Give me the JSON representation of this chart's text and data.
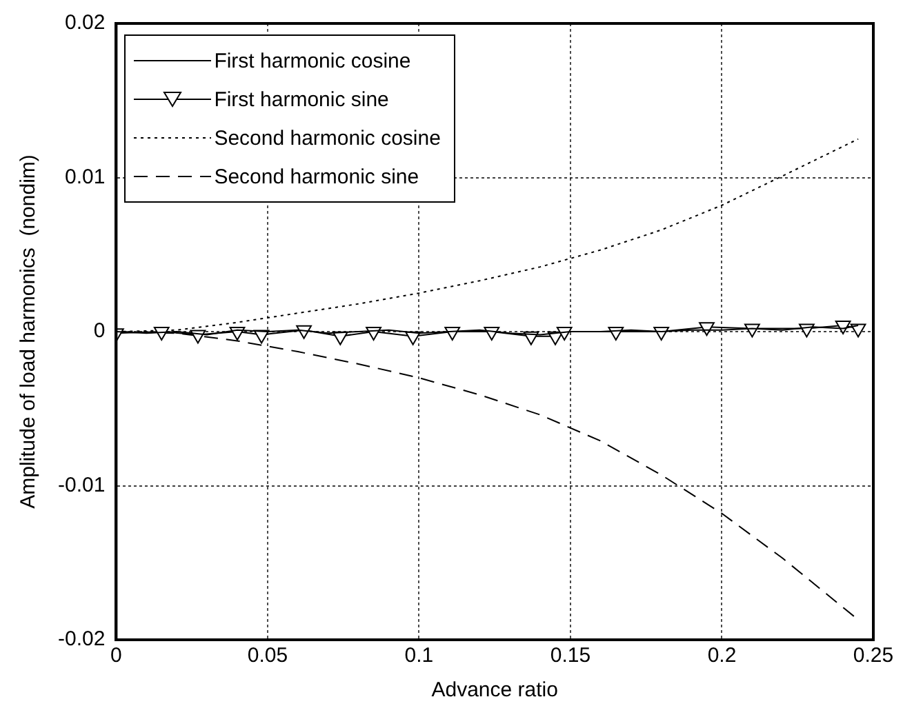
{
  "chart_data": {
    "type": "line",
    "xlabel": "Advance ratio",
    "ylabel": "Amplitude of load harmonics  (nondim)",
    "xlim": [
      0,
      0.25
    ],
    "xticks": [
      0,
      0.05,
      0.1,
      0.15,
      0.2,
      0.25
    ],
    "ylim": [
      -0.02,
      0.02
    ],
    "yticks": [
      -0.02,
      -0.01,
      0,
      0.01,
      0.02
    ],
    "grid": true,
    "legend": "top left",
    "series": [
      {
        "name": "First harmonic cosine",
        "color": "#000000",
        "marker": "none",
        "line_style": "solid",
        "x": [
          0,
          0.01,
          0.02,
          0.03,
          0.04,
          0.05,
          0.06,
          0.07,
          0.08,
          0.09,
          0.1,
          0.11,
          0.12,
          0.13,
          0.14,
          0.15,
          0.16,
          0.17,
          0.18,
          0.19,
          0.2,
          0.21,
          0.22,
          0.23,
          0.24,
          0.245
        ],
        "values": [
          0,
          -0.0001,
          0,
          -0.0002,
          0.0001,
          0,
          0.0001,
          -0.0001,
          0,
          0.0001,
          -0.0001,
          0,
          0.0001,
          -0.0001,
          -0.0002,
          0,
          0,
          0.0001,
          0,
          0.0001,
          0.0001,
          0.0002,
          0.0001,
          0.0003,
          0.0002,
          0.0004
        ]
      },
      {
        "name": "First harmonic sine",
        "color": "#000000",
        "marker": "triangle",
        "line_style": "solid",
        "x": [
          0,
          0.015,
          0.027,
          0.04,
          0.048,
          0.062,
          0.074,
          0.085,
          0.098,
          0.111,
          0.124,
          0.137,
          0.145,
          0.148,
          0.165,
          0.18,
          0.195,
          0.21,
          0.228,
          0.24,
          0.245
        ],
        "values": [
          -0.0001,
          0,
          -0.0002,
          0,
          -0.0002,
          0.0001,
          -0.0003,
          0,
          -0.0003,
          0,
          0,
          -0.0003,
          -0.0003,
          0,
          0,
          0,
          0.0003,
          0.0002,
          0.0002,
          0.0004,
          0.0002
        ]
      },
      {
        "name": "Second harmonic cosine",
        "color": "#000000",
        "marker": "none",
        "line_style": "dotted",
        "x": [
          0,
          0.02,
          0.04,
          0.06,
          0.08,
          0.1,
          0.12,
          0.14,
          0.16,
          0.18,
          0.2,
          0.22,
          0.245
        ],
        "values": [
          0,
          0.0001,
          0.0006,
          0.0012,
          0.0018,
          0.0025,
          0.0033,
          0.0042,
          0.0053,
          0.0066,
          0.0082,
          0.0101,
          0.0125
        ]
      },
      {
        "name": "Second harmonic sine",
        "color": "#000000",
        "marker": "none",
        "line_style": "dashed",
        "x": [
          0,
          0.02,
          0.04,
          0.06,
          0.08,
          0.1,
          0.12,
          0.14,
          0.16,
          0.18,
          0.2,
          0.22,
          0.245
        ],
        "values": [
          0,
          -0.0001,
          -0.0006,
          -0.0013,
          -0.0021,
          -0.003,
          -0.0041,
          -0.0054,
          -0.0071,
          -0.0093,
          -0.0118,
          -0.0147,
          -0.0187
        ]
      }
    ]
  }
}
